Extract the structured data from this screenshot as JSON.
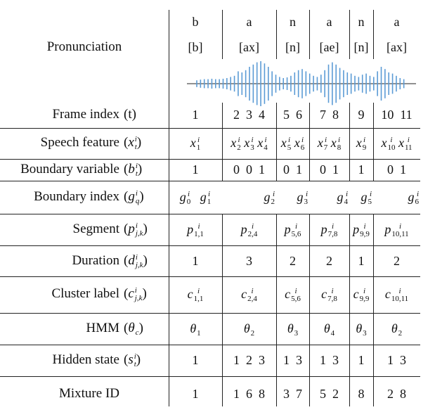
{
  "header": {
    "pronunciation_label": "Pronunciation",
    "letters": [
      "b",
      "a",
      "n",
      "a",
      "n",
      "a"
    ],
    "phonemes": [
      "[b]",
      "[ax]",
      "[n]",
      "[ae]",
      "[n]",
      "[ax]"
    ]
  },
  "rows": [
    {
      "label": "Frame index",
      "symbol": "(t)",
      "cells": [
        "1",
        "2  3  4",
        "5  6",
        "7  8",
        "9",
        "10  11"
      ]
    },
    {
      "label": "Speech feature",
      "symbol": "(x_t^i)",
      "cells": [
        "x_1^i",
        "x_2^i x_3^i x_4^i",
        "x_5^i x_6^i",
        "x_7^i x_8^i",
        "x_9^i",
        "x_10^i x_11^i"
      ]
    },
    {
      "label": "Boundary variable",
      "symbol": "(b_t^i)",
      "cells": [
        "1",
        "0  0  1",
        "0  1",
        "0  1",
        "1",
        "0  1"
      ]
    },
    {
      "label": "Boundary index",
      "symbol": "(g_q^i)",
      "cells": [
        "g_0^i   g_1^i",
        "g_2^i",
        "g_3^i",
        "g_4^i",
        "g_5^i",
        "g_6^i"
      ]
    },
    {
      "label": "Segment",
      "symbol": "(p_{j,k}^i)",
      "cells": [
        "p_{1,1}^i",
        "p_{2,4}^i",
        "p_{5,6}^i",
        "p_{7,8}^i",
        "p_{9,9}^i",
        "p_{10,11}^i"
      ]
    },
    {
      "label": "Duration",
      "symbol": "(d_{j,k}^i)",
      "cells": [
        "1",
        "3",
        "2",
        "2",
        "1",
        "2"
      ]
    },
    {
      "label": "Cluster label",
      "symbol": "(c_{j,k}^i)",
      "cells": [
        "c_{1,1}^i",
        "c_{2,4}^i",
        "c_{5,6}^i",
        "c_{7,8}^i",
        "c_{9,9}^i",
        "c_{10,11}^i"
      ]
    },
    {
      "label": "HMM",
      "symbol": "(θ_c)",
      "cells": [
        "θ_1",
        "θ_2",
        "θ_3",
        "θ_4",
        "θ_3",
        "θ_2"
      ]
    },
    {
      "label": "Hidden state",
      "symbol": "(s_t^i)",
      "cells": [
        "1",
        "1  2  3",
        "1  3",
        "1  3",
        "1",
        "1  3"
      ]
    },
    {
      "label": "Mixture ID",
      "symbol": "",
      "cells": [
        "1",
        "1  6  8",
        "3  7",
        "5  2",
        "8",
        "2  8"
      ]
    }
  ],
  "waveform": {
    "color": "#5b9bd5",
    "amplitudes": [
      0.15,
      0.18,
      0.2,
      0.2,
      0.22,
      0.2,
      0.2,
      0.22,
      0.25,
      0.3,
      0.35,
      0.55,
      0.5,
      0.6,
      0.75,
      0.85,
      0.95,
      1.0,
      0.9,
      0.75,
      0.55,
      0.4,
      0.3,
      0.25,
      0.28,
      0.35,
      0.5,
      0.6,
      0.65,
      0.55,
      0.45,
      0.35,
      0.3,
      0.4,
      0.6,
      0.85,
      0.95,
      0.85,
      0.7,
      0.6,
      0.5,
      0.45,
      0.35,
      0.3,
      0.4,
      0.45,
      0.35,
      0.3,
      0.55,
      0.75,
      0.65,
      0.5,
      0.45,
      0.35,
      0.25,
      0.2
    ]
  }
}
